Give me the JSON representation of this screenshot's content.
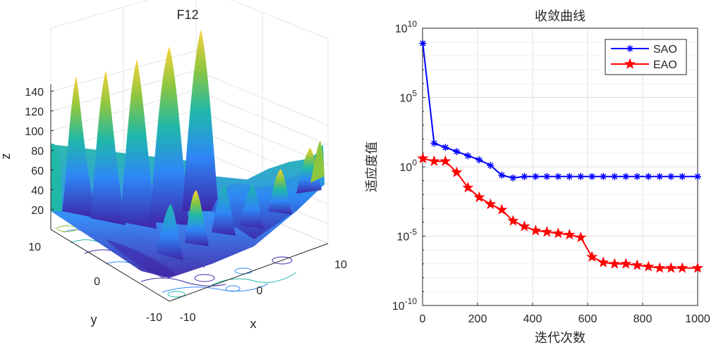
{
  "figure": {
    "left_panel": {
      "title": "F12",
      "xlabel": "x",
      "ylabel": "y",
      "zlabel": "z",
      "x_ticks": [
        "-10",
        "0",
        "10"
      ],
      "y_ticks": [
        "10",
        "0",
        "-10"
      ],
      "z_ticks": [
        "20",
        "40",
        "60",
        "80",
        "100",
        "120",
        "140"
      ],
      "colormap": [
        "#3e26a8",
        "#2e87f7",
        "#1fb8a9",
        "#8dc63f",
        "#f9d23b"
      ]
    }
  },
  "chart_data": {
    "type": "line",
    "title": "收敛曲线",
    "xlabel": "迭代次数",
    "ylabel": "适应度值",
    "xlim": [
      0,
      1000
    ],
    "ylim_log10": [
      -10,
      10
    ],
    "yscale": "log",
    "x_ticks": [
      "0",
      "200",
      "400",
      "600",
      "800",
      "1000"
    ],
    "y_ticks": [
      {
        "base": "10",
        "exp": "10",
        "value_log10": 10
      },
      {
        "base": "10",
        "exp": "5",
        "value_log10": 5
      },
      {
        "base": "10",
        "exp": "0",
        "value_log10": 0
      },
      {
        "base": "10",
        "exp": "-5",
        "value_log10": -5
      },
      {
        "base": "10",
        "exp": "-10",
        "value_log10": -10
      }
    ],
    "grid": true,
    "legend_position": "top-right",
    "series": [
      {
        "name": "SAO",
        "color": "#0000ff",
        "marker": "asterisk",
        "x": [
          1,
          42,
          83,
          124,
          165,
          206,
          247,
          288,
          329,
          370,
          411,
          452,
          493,
          534,
          575,
          616,
          657,
          698,
          739,
          780,
          821,
          862,
          903,
          944,
          1000
        ],
        "log10_y": [
          8.9,
          1.7,
          1.4,
          1.1,
          0.8,
          0.5,
          0.1,
          -0.6,
          -0.8,
          -0.7,
          -0.7,
          -0.7,
          -0.7,
          -0.7,
          -0.7,
          -0.7,
          -0.7,
          -0.7,
          -0.7,
          -0.7,
          -0.7,
          -0.7,
          -0.7,
          -0.7,
          -0.7
        ]
      },
      {
        "name": "EAO",
        "color": "#ff0000",
        "marker": "pentagram",
        "x": [
          1,
          42,
          83,
          124,
          165,
          206,
          247,
          288,
          329,
          370,
          411,
          452,
          493,
          534,
          575,
          616,
          657,
          698,
          739,
          780,
          821,
          862,
          903,
          944,
          1000
        ],
        "log10_y": [
          0.6,
          0.4,
          0.4,
          -0.4,
          -1.5,
          -2.2,
          -2.7,
          -3.1,
          -3.9,
          -4.3,
          -4.6,
          -4.7,
          -4.8,
          -4.9,
          -5.1,
          -6.5,
          -6.9,
          -7.0,
          -7.0,
          -7.1,
          -7.2,
          -7.3,
          -7.3,
          -7.3,
          -7.3
        ]
      }
    ]
  }
}
